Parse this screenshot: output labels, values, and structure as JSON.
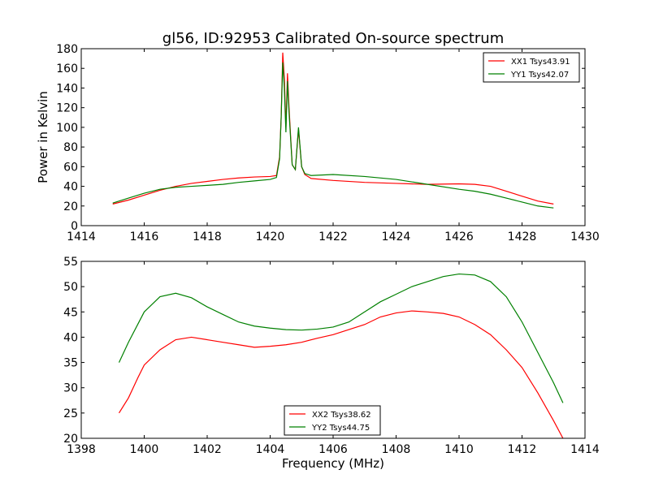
{
  "figure": {
    "background": "#ffffff"
  },
  "chart_data": [
    {
      "type": "line",
      "title": "gl56, ID:92953 Calibrated On-source spectrum",
      "xlabel": "",
      "ylabel": "Power in Kelvin",
      "xlim": [
        1414,
        1430
      ],
      "ylim": [
        0,
        180
      ],
      "x_ticks": [
        1414,
        1416,
        1418,
        1420,
        1422,
        1424,
        1426,
        1428,
        1430
      ],
      "y_ticks": [
        0,
        20,
        40,
        60,
        80,
        100,
        120,
        140,
        160,
        180
      ],
      "grid": false,
      "legend_position": "top-right",
      "series": [
        {
          "name": "XX1 Tsys43.91",
          "color": "#ff0000",
          "points": [
            [
              1415.0,
              22
            ],
            [
              1415.5,
              26
            ],
            [
              1416.0,
              31
            ],
            [
              1416.5,
              36
            ],
            [
              1417.0,
              40
            ],
            [
              1417.5,
              43
            ],
            [
              1418.0,
              45
            ],
            [
              1418.5,
              47
            ],
            [
              1419.0,
              48.5
            ],
            [
              1419.5,
              49.5
            ],
            [
              1420.0,
              50
            ],
            [
              1420.2,
              51
            ],
            [
              1420.3,
              70
            ],
            [
              1420.35,
              110
            ],
            [
              1420.4,
              176
            ],
            [
              1420.45,
              150
            ],
            [
              1420.5,
              100
            ],
            [
              1420.55,
              155
            ],
            [
              1420.6,
              120
            ],
            [
              1420.7,
              62
            ],
            [
              1420.8,
              57
            ],
            [
              1420.9,
              98
            ],
            [
              1421.0,
              60
            ],
            [
              1421.1,
              52
            ],
            [
              1421.3,
              48
            ],
            [
              1422.0,
              46
            ],
            [
              1423.0,
              44
            ],
            [
              1424.0,
              43
            ],
            [
              1425.0,
              42
            ],
            [
              1426.0,
              42.5
            ],
            [
              1426.5,
              42
            ],
            [
              1427.0,
              40
            ],
            [
              1427.5,
              35
            ],
            [
              1428.0,
              30
            ],
            [
              1428.5,
              25
            ],
            [
              1429.0,
              22
            ]
          ]
        },
        {
          "name": "YY1 Tsys42.07",
          "color": "#008000",
          "points": [
            [
              1415.0,
              23
            ],
            [
              1415.5,
              28
            ],
            [
              1416.0,
              33
            ],
            [
              1416.5,
              37
            ],
            [
              1417.0,
              39
            ],
            [
              1417.5,
              40
            ],
            [
              1418.0,
              41
            ],
            [
              1418.5,
              42
            ],
            [
              1419.0,
              44
            ],
            [
              1419.5,
              45.5
            ],
            [
              1420.0,
              47
            ],
            [
              1420.2,
              49
            ],
            [
              1420.3,
              68
            ],
            [
              1420.35,
              110
            ],
            [
              1420.4,
              166
            ],
            [
              1420.45,
              140
            ],
            [
              1420.5,
              95
            ],
            [
              1420.55,
              147
            ],
            [
              1420.6,
              115
            ],
            [
              1420.7,
              62
            ],
            [
              1420.8,
              57
            ],
            [
              1420.9,
              100
            ],
            [
              1421.0,
              60
            ],
            [
              1421.1,
              53
            ],
            [
              1421.3,
              51
            ],
            [
              1422.0,
              52
            ],
            [
              1423.0,
              50
            ],
            [
              1424.0,
              47
            ],
            [
              1425.0,
              42
            ],
            [
              1426.0,
              37
            ],
            [
              1426.5,
              35
            ],
            [
              1427.0,
              32
            ],
            [
              1427.5,
              28
            ],
            [
              1428.0,
              24
            ],
            [
              1428.5,
              20
            ],
            [
              1429.0,
              18
            ]
          ]
        }
      ]
    },
    {
      "type": "line",
      "title": "",
      "xlabel": "Frequency (MHz)",
      "ylabel": "",
      "xlim": [
        1398,
        1414
      ],
      "ylim": [
        20,
        55
      ],
      "x_ticks": [
        1398,
        1400,
        1402,
        1404,
        1406,
        1408,
        1410,
        1412,
        1414
      ],
      "y_ticks": [
        20,
        25,
        30,
        35,
        40,
        45,
        50,
        55
      ],
      "grid": false,
      "legend_position": "bottom-center",
      "series": [
        {
          "name": "XX2 Tsys38.62",
          "color": "#ff0000",
          "points": [
            [
              1399.2,
              25
            ],
            [
              1399.5,
              28
            ],
            [
              1399.8,
              32
            ],
            [
              1400.0,
              34.5
            ],
            [
              1400.5,
              37.5
            ],
            [
              1401.0,
              39.5
            ],
            [
              1401.5,
              40
            ],
            [
              1402.0,
              39.5
            ],
            [
              1402.5,
              39
            ],
            [
              1403.0,
              38.5
            ],
            [
              1403.5,
              38
            ],
            [
              1404.0,
              38.2
            ],
            [
              1404.5,
              38.5
            ],
            [
              1405.0,
              39
            ],
            [
              1405.5,
              39.8
            ],
            [
              1406.0,
              40.5
            ],
            [
              1406.5,
              41.5
            ],
            [
              1407.0,
              42.5
            ],
            [
              1407.5,
              44
            ],
            [
              1408.0,
              44.8
            ],
            [
              1408.5,
              45.2
            ],
            [
              1409.0,
              45
            ],
            [
              1409.5,
              44.7
            ],
            [
              1410.0,
              44
            ],
            [
              1410.5,
              42.5
            ],
            [
              1411.0,
              40.5
            ],
            [
              1411.5,
              37.5
            ],
            [
              1412.0,
              34
            ],
            [
              1412.5,
              29
            ],
            [
              1413.0,
              23.5
            ],
            [
              1413.3,
              20
            ]
          ]
        },
        {
          "name": "YY2 Tsys44.75",
          "color": "#008000",
          "points": [
            [
              1399.2,
              35
            ],
            [
              1399.5,
              39
            ],
            [
              1400.0,
              45
            ],
            [
              1400.5,
              48
            ],
            [
              1401.0,
              48.7
            ],
            [
              1401.5,
              47.8
            ],
            [
              1402.0,
              46
            ],
            [
              1402.5,
              44.5
            ],
            [
              1403.0,
              43
            ],
            [
              1403.5,
              42.2
            ],
            [
              1404.0,
              41.8
            ],
            [
              1404.5,
              41.5
            ],
            [
              1405.0,
              41.4
            ],
            [
              1405.5,
              41.6
            ],
            [
              1406.0,
              42
            ],
            [
              1406.5,
              43
            ],
            [
              1407.0,
              45
            ],
            [
              1407.5,
              47
            ],
            [
              1408.0,
              48.5
            ],
            [
              1408.5,
              50
            ],
            [
              1409.0,
              51
            ],
            [
              1409.5,
              52
            ],
            [
              1410.0,
              52.5
            ],
            [
              1410.5,
              52.3
            ],
            [
              1411.0,
              51
            ],
            [
              1411.5,
              48
            ],
            [
              1412.0,
              43
            ],
            [
              1412.5,
              37
            ],
            [
              1413.0,
              31
            ],
            [
              1413.3,
              27
            ]
          ]
        }
      ]
    }
  ]
}
